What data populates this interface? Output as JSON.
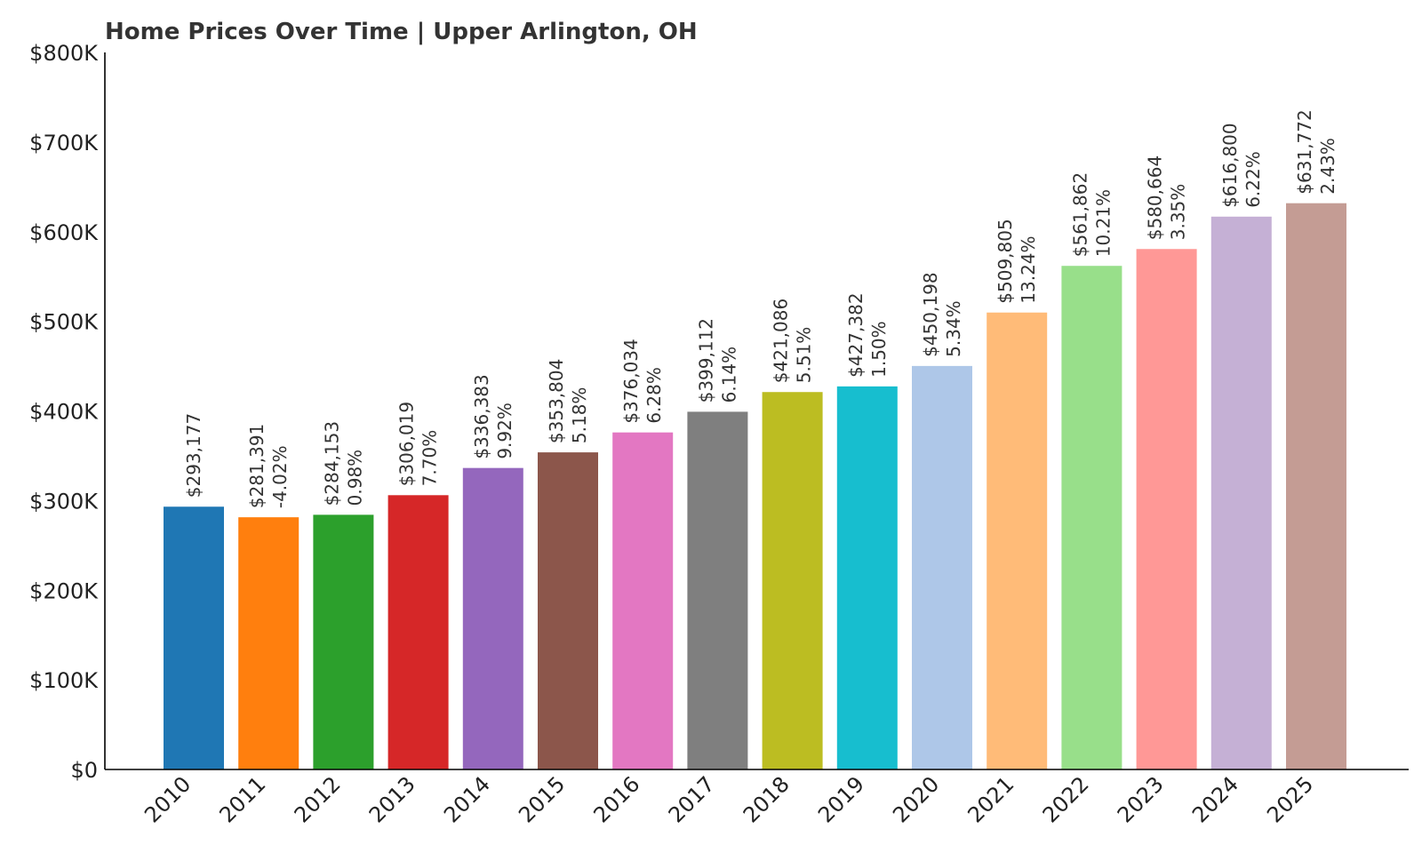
{
  "chart_data": {
    "type": "bar",
    "title": "Home Prices Over Time | Upper Arlington, OH",
    "xlabel": "",
    "ylabel": "",
    "ylim": [
      0,
      800000
    ],
    "yticks": [
      0,
      100000,
      200000,
      300000,
      400000,
      500000,
      600000,
      700000,
      800000
    ],
    "ytick_labels": [
      "$0",
      "$100K",
      "$200K",
      "$300K",
      "$400K",
      "$500K",
      "$600K",
      "$700K",
      "$800K"
    ],
    "categories": [
      "2010",
      "2011",
      "2012",
      "2013",
      "2014",
      "2015",
      "2016",
      "2017",
      "2018",
      "2019",
      "2020",
      "2021",
      "2022",
      "2023",
      "2024",
      "2025"
    ],
    "values": [
      293177,
      281391,
      284153,
      306019,
      336383,
      353804,
      376034,
      399112,
      421086,
      427382,
      450198,
      509805,
      561862,
      580664,
      616800,
      631772
    ],
    "value_labels": [
      "$293,177",
      "$281,391",
      "$284,153",
      "$306,019",
      "$336,383",
      "$353,804",
      "$376,034",
      "$399,112",
      "$421,086",
      "$427,382",
      "$450,198",
      "$509,805",
      "$561,862",
      "$580,664",
      "$616,800",
      "$631,772"
    ],
    "change_labels": [
      "",
      "-4.02%",
      "0.98%",
      "7.70%",
      "9.92%",
      "5.18%",
      "6.28%",
      "6.14%",
      "5.51%",
      "1.50%",
      "5.34%",
      "13.24%",
      "10.21%",
      "3.35%",
      "6.22%",
      "2.43%"
    ],
    "colors": [
      "#1f77b4",
      "#ff7f0e",
      "#2ca02c",
      "#d62728",
      "#9467bd",
      "#8c564b",
      "#e377c2",
      "#7f7f7f",
      "#bcbd22",
      "#17becf",
      "#aec7e8",
      "#ffbb78",
      "#98df8a",
      "#ff9896",
      "#c5b0d5",
      "#c49c94"
    ],
    "grid": false,
    "legend": "none"
  }
}
